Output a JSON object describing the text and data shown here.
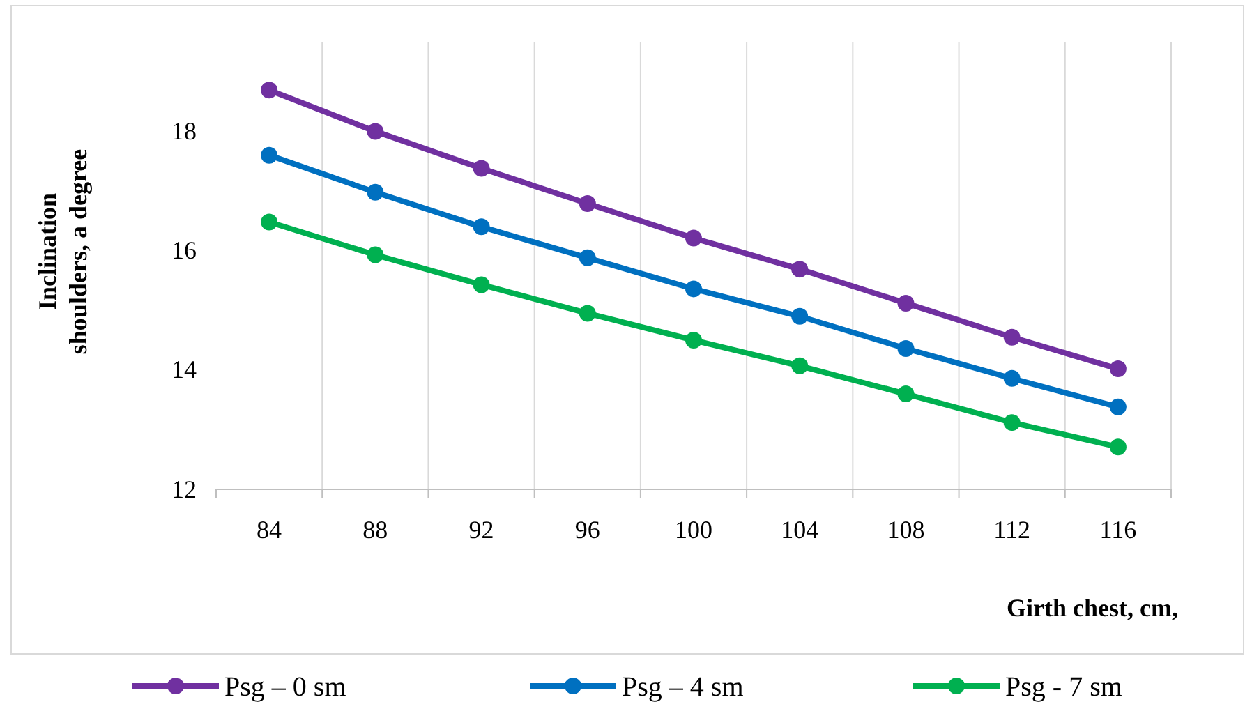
{
  "chart_data": {
    "type": "line",
    "xlabel": "Girth chest, cm,",
    "ylabel": "Inclination shoulders, a degree",
    "categories": [
      "84",
      "88",
      "92",
      "96",
      "100",
      "104",
      "108",
      "112",
      "116"
    ],
    "series": [
      {
        "name": "Psg – 0 sm",
        "color": "#7030a0",
        "values": [
          18.69,
          18.0,
          17.38,
          16.79,
          16.21,
          15.69,
          15.12,
          14.55,
          14.02
        ]
      },
      {
        "name": "Psg – 4 sm",
        "color": "#0070c0",
        "values": [
          17.6,
          16.98,
          16.4,
          15.88,
          15.36,
          14.9,
          14.36,
          13.86,
          13.38
        ]
      },
      {
        "name": "Psg - 7 sm",
        "color": "#00b050",
        "values": [
          16.48,
          15.93,
          15.43,
          14.95,
          14.5,
          14.07,
          13.6,
          13.12,
          12.71
        ]
      }
    ],
    "ylim": [
      12,
      19.5
    ],
    "yticks": [
      12,
      14,
      16,
      18
    ],
    "grid": "x",
    "legend": "bottom",
    "marker": "circle",
    "line_style": "solid"
  }
}
